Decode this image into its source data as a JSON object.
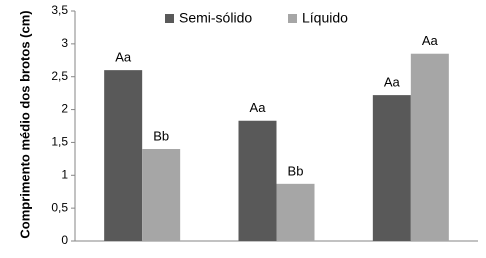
{
  "chart_data": {
    "type": "bar",
    "ylabel": "Comprimento médio dos brotos (cm)",
    "categories": [
      null,
      null,
      null
    ],
    "series": [
      {
        "name": "Semi-sólido",
        "color": "#595959",
        "values": [
          2.6,
          1.83,
          2.22
        ],
        "labels": [
          "Aa",
          "Aa",
          "Aa"
        ]
      },
      {
        "name": "Líquido",
        "color": "#a6a6a6",
        "values": [
          1.4,
          0.87,
          2.85
        ],
        "labels": [
          "Bb",
          "Bb",
          "Aa"
        ]
      }
    ],
    "ylim": [
      0,
      3.5
    ],
    "yticks": [
      0,
      {
        "value": 0.5,
        "label": "0,5"
      },
      1,
      {
        "value": 1.5,
        "label": "1,5"
      },
      2,
      {
        "value": 2.5,
        "label": "2,5"
      },
      3,
      {
        "value": 3.5,
        "label": "3,5"
      }
    ],
    "grid": false,
    "legend": "top"
  }
}
